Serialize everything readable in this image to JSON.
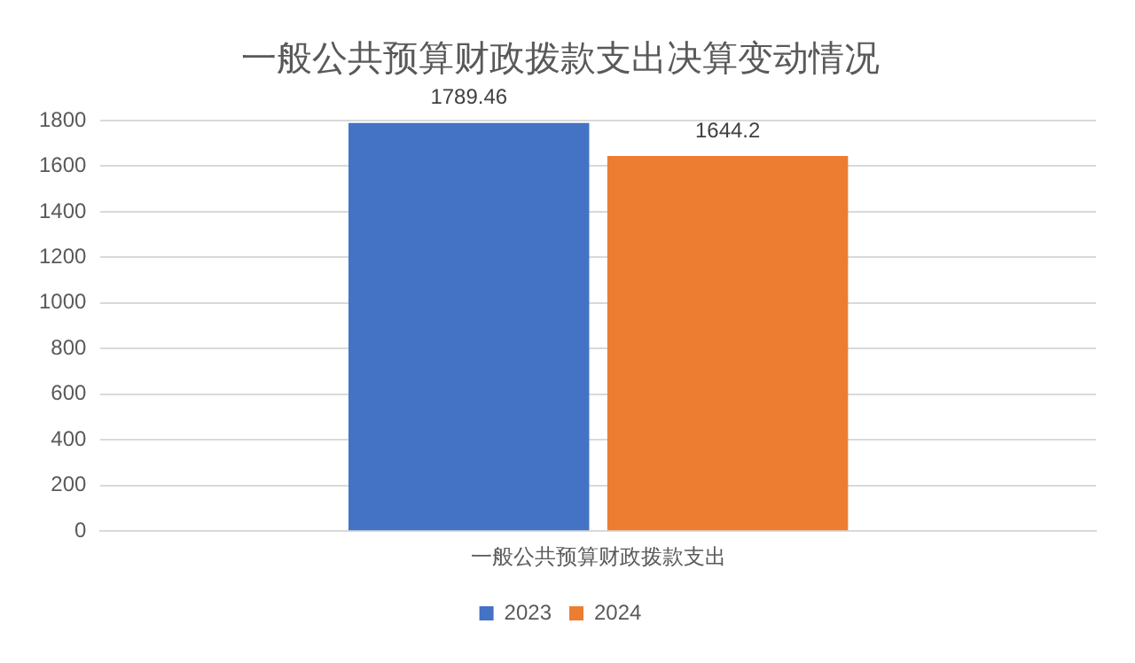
{
  "chart_data": {
    "type": "bar",
    "title": "一般公共预算财政拨款支出决算变动情况",
    "categories": [
      "一般公共预算财政拨款支出"
    ],
    "series": [
      {
        "name": "2023",
        "color": "#4472c4",
        "values": [
          1789.46
        ]
      },
      {
        "name": "2024",
        "color": "#ed7d31",
        "values": [
          1644.2
        ]
      }
    ],
    "ylim": [
      0,
      1800
    ],
    "yticks": [
      0,
      200,
      400,
      600,
      800,
      1000,
      1200,
      1400,
      1600,
      1800
    ],
    "grid": "y",
    "legend": "bottom",
    "data_labels": true
  }
}
